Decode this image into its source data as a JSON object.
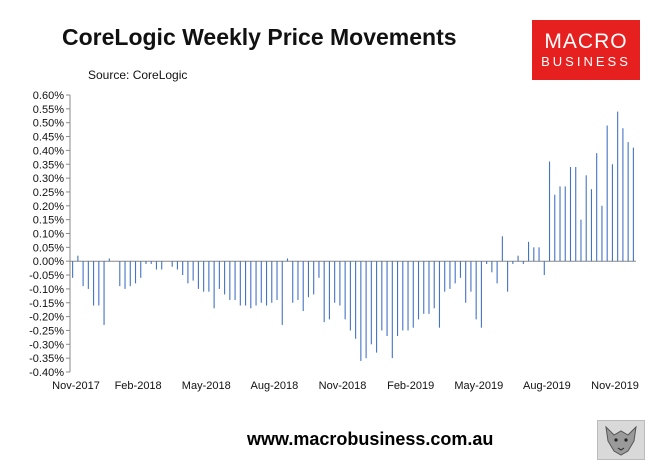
{
  "chart_data": {
    "type": "bar",
    "title": "CoreLogic Weekly Price Movements",
    "source": "Source: CoreLogic",
    "y_ticks": [
      "0.60%",
      "0.55%",
      "0.50%",
      "0.45%",
      "0.40%",
      "0.35%",
      "0.30%",
      "0.25%",
      "0.20%",
      "0.15%",
      "0.10%",
      "0.05%",
      "0.00%",
      "-0.05%",
      "-0.10%",
      "-0.15%",
      "-0.20%",
      "-0.25%",
      "-0.30%",
      "-0.35%",
      "-0.40%"
    ],
    "x_ticks": [
      "Nov-2017",
      "Feb-2018",
      "May-2018",
      "Aug-2018",
      "Nov-2018",
      "Feb-2019",
      "May-2019",
      "Aug-2019",
      "Nov-2019"
    ],
    "ylim": [
      -0.4,
      0.6
    ],
    "units": "%",
    "bar_color": "#4472c4",
    "series": [
      {
        "values": [
          -0.06,
          0.02,
          -0.09,
          -0.1,
          -0.16,
          -0.16,
          -0.23,
          0.01,
          0.0,
          -0.09,
          -0.1,
          -0.09,
          -0.08,
          -0.06,
          -0.01,
          -0.01,
          -0.03,
          -0.03,
          0.0,
          -0.02,
          -0.03,
          -0.05,
          -0.08,
          -0.07,
          -0.1,
          -0.11,
          -0.11,
          -0.17,
          -0.1,
          -0.12,
          -0.14,
          -0.14,
          -0.16,
          -0.16,
          -0.17,
          -0.16,
          -0.15,
          -0.16,
          -0.15,
          -0.14,
          -0.23,
          0.01,
          -0.15,
          -0.14,
          -0.18,
          -0.13,
          -0.12,
          -0.06,
          -0.22,
          -0.21,
          -0.15,
          -0.16,
          -0.21,
          -0.25,
          -0.28,
          -0.36,
          -0.35,
          -0.3,
          -0.33,
          -0.25,
          -0.27,
          -0.35,
          -0.27,
          -0.25,
          -0.25,
          -0.24,
          -0.21,
          -0.19,
          -0.19,
          -0.17,
          -0.24,
          -0.11,
          -0.1,
          -0.08,
          -0.06,
          -0.15,
          -0.11,
          -0.21,
          -0.24,
          -0.01,
          -0.04,
          -0.08,
          0.09,
          -0.11,
          -0.01,
          0.02,
          -0.01,
          0.07,
          0.05,
          0.05,
          -0.05,
          0.36,
          0.24,
          0.27,
          0.27,
          0.34,
          0.34,
          0.15,
          0.31,
          0.26,
          0.39,
          0.2,
          0.49,
          0.35,
          0.54,
          0.48,
          0.43,
          0.41
        ]
      }
    ]
  },
  "logo": {
    "line1": "MACRO",
    "line2": "BUSINESS"
  },
  "footer": "www.macrobusiness.com.au"
}
